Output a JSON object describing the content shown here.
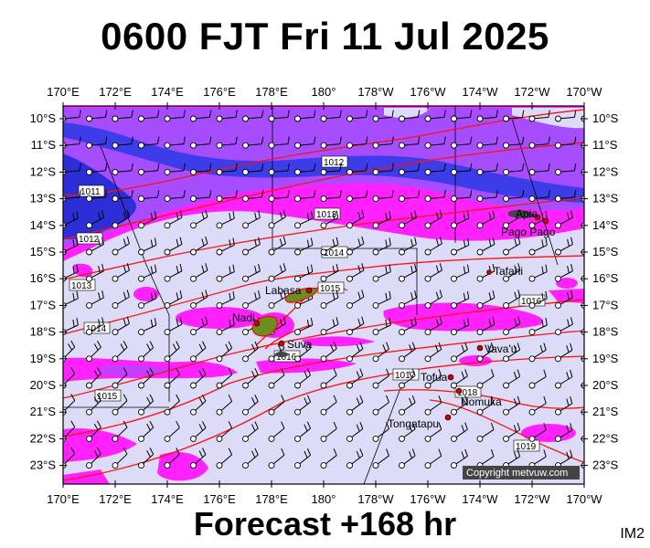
{
  "header": {
    "title": "0600 FJT Fri 11 Jul 2025"
  },
  "footer": {
    "forecast": "Forecast +168 hr",
    "code": "IM2"
  },
  "map": {
    "lon_labels": [
      "170°E",
      "172°E",
      "174°E",
      "176°E",
      "178°E",
      "180°",
      "178°W",
      "176°W",
      "174°W",
      "172°W",
      "170°W"
    ],
    "lat_labels": [
      "10°S",
      "11°S",
      "12°S",
      "13°S",
      "14°S",
      "15°S",
      "16°S",
      "17°S",
      "18°S",
      "19°S",
      "20°S",
      "21°S",
      "22°S",
      "23°S"
    ],
    "isobars": [
      "1011",
      "1012",
      "1012",
      "1013",
      "1013",
      "1014",
      "1015",
      "1016",
      "1016",
      "1014",
      "1015",
      "1016",
      "1017",
      "1018",
      "1019"
    ],
    "places": [
      "Apia",
      "Pago Pago",
      "Tafahi",
      "Labasa",
      "Nadi",
      "Suva",
      "Vava'u",
      "Tofua",
      "Nomuka",
      "Tongatapu"
    ],
    "copyright": "Copyright metvuw.com",
    "colors": {
      "background": "#dcdcf8",
      "rain_light": "#ff00ff",
      "rain_mid": "#9b30ff",
      "rain_heavy": "#3030e0",
      "isobar": "#ff0000"
    }
  }
}
